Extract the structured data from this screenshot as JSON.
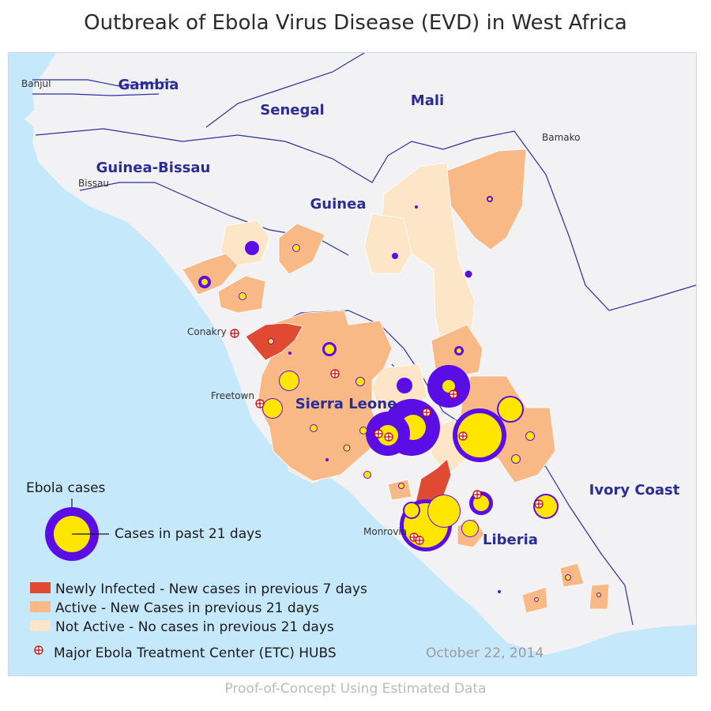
{
  "title": "Outbreak of Ebola Virus Disease (EVD) in West Africa",
  "footer": "Proof-of-Concept Using Estimated Data",
  "date": "October 22, 2014",
  "colors": {
    "ocean": "#c6e8fb",
    "land": "#f2f2f4",
    "border": "#2e2ea0",
    "newly": "#e04a33",
    "active": "#f8b987",
    "not_active": "#fde6c8",
    "outer_circle": "#5b0de6",
    "inner_circle": "#ffe600",
    "etc": "#cc0000"
  },
  "countries": {
    "gambia": "Gambia",
    "senegal": "Senegal",
    "mali": "Mali",
    "guinea_bissau": "Guinea-Bissau",
    "guinea": "Guinea",
    "sierra_leone": "Sierra Leone",
    "liberia": "Liberia",
    "ivory_coast": "Ivory Coast"
  },
  "cities": {
    "banjul": "Banjul",
    "bissau": "Bissau",
    "bamako": "Bamako",
    "conakry": "Conakry",
    "freetown": "Freetown",
    "monrovia": "Monrovia"
  },
  "legend": {
    "ebola_cases": "Ebola cases",
    "past_21": "Cases in past 21 days",
    "newly": "Newly Infected - New cases in previous 7 days",
    "active": "Active - New Cases in previous 21 days",
    "not_active": "Not Active - No cases in previous 21 days",
    "etc": "Major Ebola Treatment Center (ETC) HUBS"
  }
}
